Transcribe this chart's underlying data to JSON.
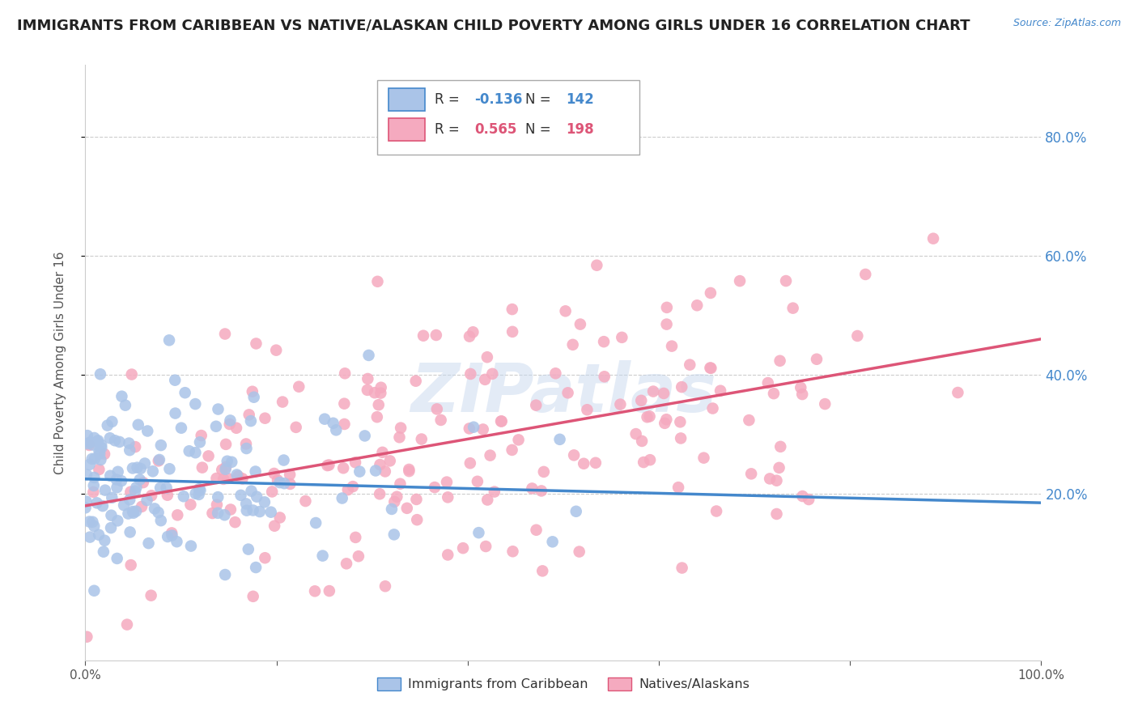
{
  "title": "IMMIGRANTS FROM CARIBBEAN VS NATIVE/ALASKAN CHILD POVERTY AMONG GIRLS UNDER 16 CORRELATION CHART",
  "source": "Source: ZipAtlas.com",
  "ylabel": "Child Poverty Among Girls Under 16",
  "xlim": [
    0.0,
    1.0
  ],
  "ylim": [
    -0.08,
    0.92
  ],
  "xticks": [
    0.0,
    0.2,
    0.4,
    0.6,
    0.8,
    1.0
  ],
  "xticklabels": [
    "0.0%",
    "",
    "",
    "",
    "",
    "100.0%"
  ],
  "ytick_positions": [
    0.2,
    0.4,
    0.6,
    0.8
  ],
  "yticklabels": [
    "20.0%",
    "40.0%",
    "60.0%",
    "80.0%"
  ],
  "blue_R": -0.136,
  "blue_N": 142,
  "pink_R": 0.565,
  "pink_N": 198,
  "blue_color": "#aac4e8",
  "pink_color": "#f5aabf",
  "blue_line_color": "#4488cc",
  "pink_line_color": "#dd5577",
  "legend_label_blue": "Immigrants from Caribbean",
  "legend_label_pink": "Natives/Alaskans",
  "watermark": "ZIPatlas",
  "background_color": "#ffffff",
  "grid_color": "#cccccc",
  "title_fontsize": 13,
  "axis_label_fontsize": 11,
  "tick_fontsize": 11,
  "blue_slope": -0.04,
  "blue_intercept": 0.225,
  "pink_slope": 0.28,
  "pink_intercept": 0.18,
  "seed": 99
}
